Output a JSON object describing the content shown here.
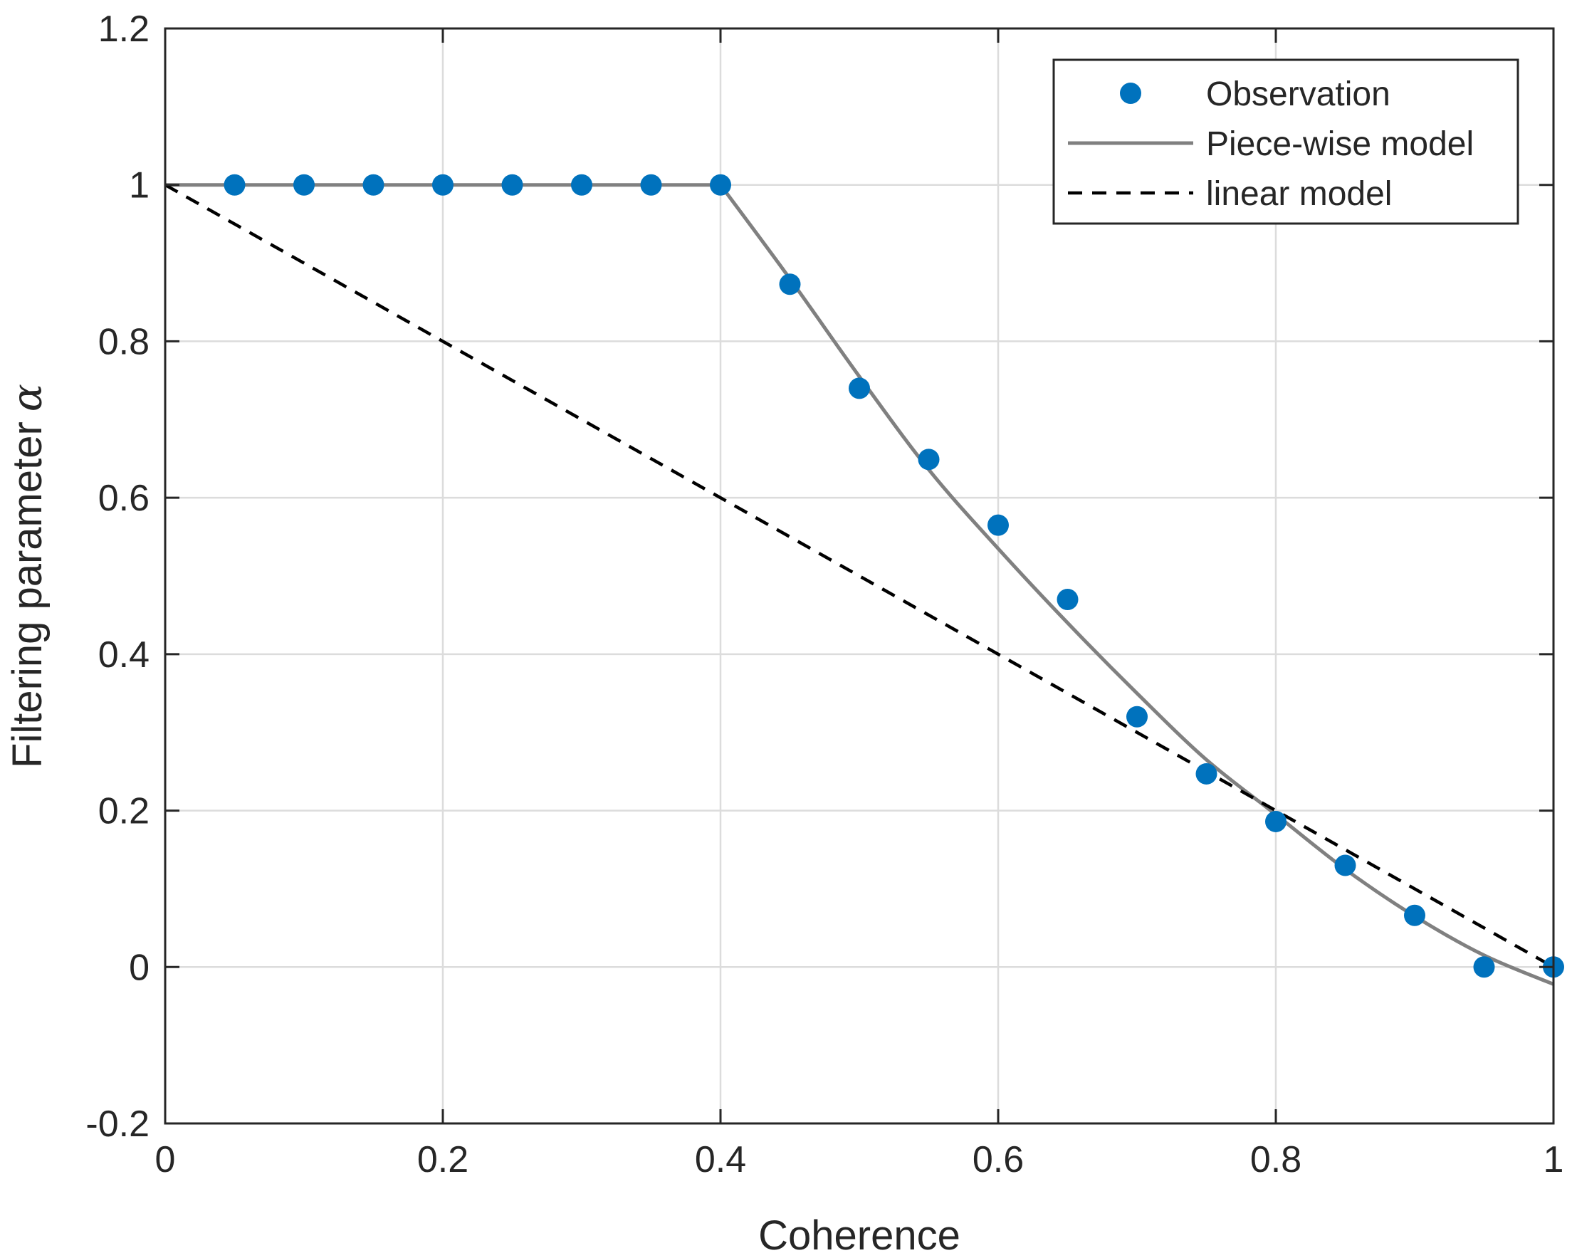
{
  "chart_data": {
    "type": "line",
    "title": "",
    "xlabel": "Coherence",
    "ylabel": "Filtering parameter",
    "ylabel_symbol": "α",
    "xlim": [
      0,
      1
    ],
    "ylim": [
      -0.2,
      1.2
    ],
    "xticks": [
      0,
      0.2,
      0.4,
      0.6,
      0.8,
      1
    ],
    "xtick_labels": [
      "0",
      "0.2",
      "0.4",
      "0.6",
      "0.8",
      "1"
    ],
    "yticks": [
      -0.2,
      0,
      0.2,
      0.4,
      0.6,
      0.8,
      1,
      1.2
    ],
    "ytick_labels": [
      "-0.2",
      "0",
      "0.2",
      "0.4",
      "0.6",
      "0.8",
      "1",
      "1.2"
    ],
    "grid": true,
    "legend_position": "top-right",
    "series": [
      {
        "name": "Observation",
        "kind": "scatter",
        "color": "#0072BD",
        "x": [
          0.05,
          0.1,
          0.15,
          0.2,
          0.25,
          0.3,
          0.35,
          0.4,
          0.45,
          0.5,
          0.55,
          0.6,
          0.65,
          0.7,
          0.75,
          0.8,
          0.85,
          0.9,
          0.95,
          1.0
        ],
        "y": [
          1,
          1,
          1,
          1,
          1,
          1,
          1,
          1,
          0.873,
          0.74,
          0.649,
          0.565,
          0.47,
          0.32,
          0.247,
          0.186,
          0.13,
          0.066,
          0.0,
          0.0
        ]
      },
      {
        "name": "Piece-wise model",
        "kind": "line",
        "color": "#808080",
        "dash": "solid",
        "x": [
          0,
          0.4,
          0.45,
          0.5,
          0.55,
          0.6,
          0.65,
          0.7,
          0.75,
          0.8,
          0.85,
          0.9,
          0.95,
          1.0
        ],
        "y": [
          1,
          1,
          0.88,
          0.755,
          0.636,
          0.535,
          0.44,
          0.35,
          0.265,
          0.195,
          0.125,
          0.065,
          0.015,
          -0.022
        ]
      },
      {
        "name": "linear model",
        "kind": "line",
        "color": "#000000",
        "dash": "dashed",
        "x": [
          0,
          1
        ],
        "y": [
          1,
          0
        ]
      }
    ]
  }
}
